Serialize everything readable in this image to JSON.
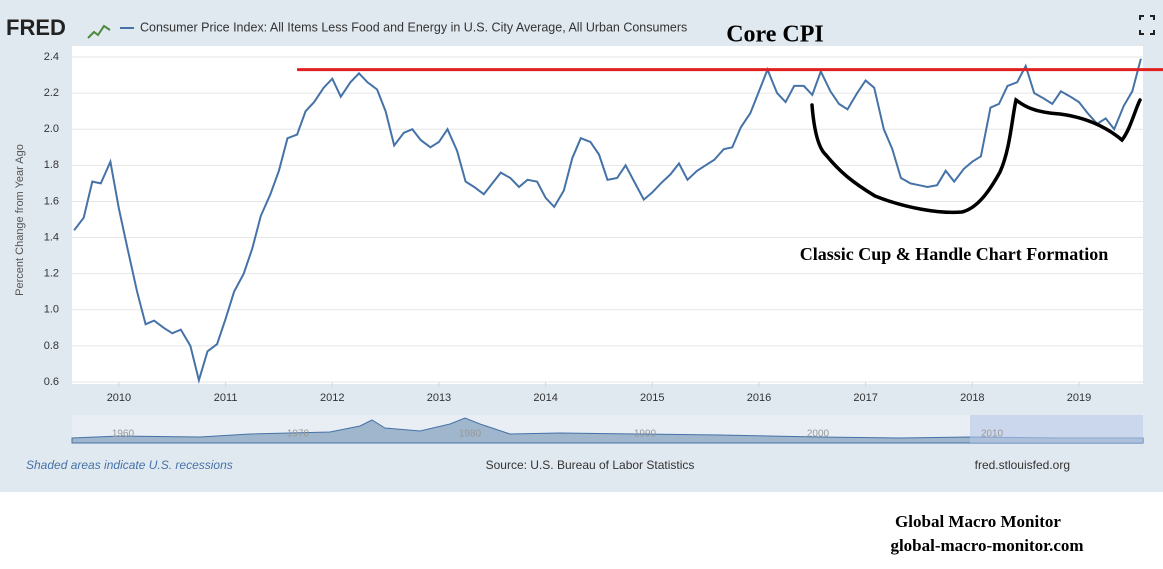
{
  "chart_data": {
    "type": "line",
    "logo": "FRED",
    "title": "Core CPI",
    "ylabel": "Percent Change from Year Ago",
    "x": [
      2009.58,
      2009.67,
      2009.75,
      2009.83,
      2009.92,
      2010.0,
      2010.08,
      2010.17,
      2010.25,
      2010.33,
      2010.42,
      2010.5,
      2010.58,
      2010.67,
      2010.75,
      2010.83,
      2010.92,
      2011.0,
      2011.08,
      2011.17,
      2011.25,
      2011.33,
      2011.42,
      2011.5,
      2011.58,
      2011.67,
      2011.75,
      2011.83,
      2011.92,
      2012.0,
      2012.08,
      2012.17,
      2012.25,
      2012.33,
      2012.42,
      2012.5,
      2012.58,
      2012.67,
      2012.75,
      2012.83,
      2012.92,
      2013.0,
      2013.08,
      2013.17,
      2013.25,
      2013.33,
      2013.42,
      2013.5,
      2013.58,
      2013.67,
      2013.75,
      2013.83,
      2013.92,
      2014.0,
      2014.08,
      2014.17,
      2014.25,
      2014.33,
      2014.42,
      2014.5,
      2014.58,
      2014.67,
      2014.75,
      2014.83,
      2014.92,
      2015.0,
      2015.08,
      2015.17,
      2015.25,
      2015.33,
      2015.42,
      2015.5,
      2015.58,
      2015.67,
      2015.75,
      2015.83,
      2015.92,
      2016.0,
      2016.08,
      2016.17,
      2016.25,
      2016.33,
      2016.42,
      2016.5,
      2016.58,
      2016.67,
      2016.75,
      2016.83,
      2016.92,
      2017.0,
      2017.08,
      2017.17,
      2017.25,
      2017.33,
      2017.42,
      2017.5,
      2017.58,
      2017.67,
      2017.75,
      2017.83,
      2017.92,
      2018.0,
      2018.08,
      2018.17,
      2018.25,
      2018.33,
      2018.42,
      2018.5,
      2018.58,
      2018.67,
      2018.75,
      2018.83,
      2018.92,
      2019.0,
      2019.08,
      2019.17,
      2019.25,
      2019.33,
      2019.42,
      2019.5,
      2019.58
    ],
    "series": [
      {
        "name": "Consumer Price Index: All Items Less Food and Energy in U.S. City Average, All Urban Consumers",
        "color": "#4572a7",
        "values": [
          1.44,
          1.51,
          1.71,
          1.7,
          1.82,
          1.56,
          1.34,
          1.1,
          0.92,
          0.94,
          0.9,
          0.87,
          0.89,
          0.8,
          0.61,
          0.77,
          0.81,
          0.95,
          1.1,
          1.2,
          1.34,
          1.52,
          1.64,
          1.77,
          1.95,
          1.97,
          2.1,
          2.15,
          2.23,
          2.28,
          2.18,
          2.26,
          2.31,
          2.26,
          2.22,
          2.1,
          1.91,
          1.98,
          2.0,
          1.94,
          1.9,
          1.93,
          2.0,
          1.88,
          1.71,
          1.68,
          1.64,
          1.7,
          1.76,
          1.73,
          1.68,
          1.72,
          1.71,
          1.62,
          1.57,
          1.66,
          1.84,
          1.95,
          1.93,
          1.86,
          1.72,
          1.73,
          1.8,
          1.71,
          1.61,
          1.65,
          1.7,
          1.75,
          1.81,
          1.72,
          1.77,
          1.8,
          1.83,
          1.89,
          1.9,
          2.01,
          2.09,
          2.21,
          2.33,
          2.2,
          2.15,
          2.24,
          2.24,
          2.19,
          2.32,
          2.21,
          2.14,
          2.11,
          2.2,
          2.27,
          2.23,
          2.0,
          1.89,
          1.73,
          1.7,
          1.69,
          1.68,
          1.69,
          1.77,
          1.71,
          1.78,
          1.82,
          1.85,
          2.12,
          2.14,
          2.24,
          2.26,
          2.35,
          2.2,
          2.17,
          2.14,
          2.21,
          2.18,
          2.15,
          2.09,
          2.03,
          2.06,
          2.0,
          2.13,
          2.21,
          2.39
        ]
      }
    ],
    "xlim": [
      2009.56,
      2019.6
    ],
    "xticks": [
      2010,
      2011,
      2012,
      2013,
      2014,
      2015,
      2016,
      2017,
      2018,
      2019
    ],
    "ylim": [
      0.6,
      2.4
    ],
    "yticks": [
      0.6,
      0.8,
      {
        "value": 1.0,
        "label": "1.0"
      },
      1.2,
      1.4,
      1.6,
      1.8,
      {
        "value": 2.0,
        "label": "2.0"
      },
      2.2,
      2.4
    ],
    "grid": true,
    "reference_line": {
      "value": 2.33,
      "x_start": 2011.67,
      "color": "#e02020"
    },
    "annotation": "Classic Cup & Handle Chart Formation",
    "navigator_labels": [
      "1960",
      "1970",
      "1980",
      "1990",
      "2000",
      "2010"
    ],
    "recession_note": "Shaded areas indicate U.S. recessions",
    "source": "Source: U.S. Bureau of Labor Statistics",
    "site": "fred.stlouisfed.org",
    "credit": "Global Macro Monitor",
    "credit_url": "global-macro-monitor.com"
  }
}
